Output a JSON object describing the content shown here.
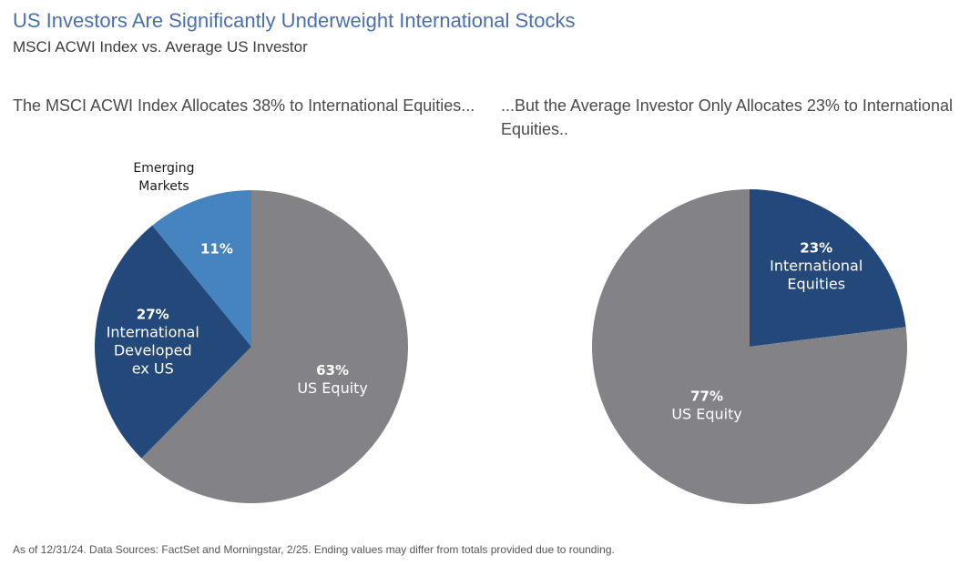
{
  "header": {
    "title": "US Investors Are Significantly Underweight International Stocks",
    "subtitle": "MSCI ACWI Index vs. Average US Investor"
  },
  "panels": {
    "left_title": "The MSCI ACWI Index Allocates 38% to International Equities...",
    "right_title": "...But the Average Investor Only Allocates 23% to International Equities.."
  },
  "colors": {
    "us_equity": "#838387",
    "intl": "#23497a",
    "emerging": "#4584bf"
  },
  "chart_data": [
    {
      "type": "pie",
      "title": "The MSCI ACWI Index Allocates 38% to International Equities...",
      "slices": [
        {
          "name": "US Equity",
          "value": 63,
          "label_pct": "63%",
          "label_lines": [
            "US Equity"
          ],
          "color": "#838387"
        },
        {
          "name": "International Developed ex US",
          "value": 27,
          "label_pct": "27%",
          "label_lines": [
            "International",
            "Developed",
            "ex US"
          ],
          "color": "#23497a"
        },
        {
          "name": "Emerging Markets",
          "value": 11,
          "label_pct": "11%",
          "label_lines": [],
          "external_label_lines": [
            "Emerging",
            "Markets"
          ],
          "color": "#4584bf"
        }
      ]
    },
    {
      "type": "pie",
      "title": "...But the Average Investor Only Allocates 23% to International Equities..",
      "slices": [
        {
          "name": "International Equities",
          "value": 23,
          "label_pct": "23%",
          "label_lines": [
            "International",
            "Equities"
          ],
          "color": "#23497a"
        },
        {
          "name": "US Equity",
          "value": 77,
          "label_pct": "77%",
          "label_lines": [
            "US Equity"
          ],
          "color": "#838387"
        }
      ]
    }
  ],
  "footnote": "As of 12/31/24. Data Sources: FactSet and Morningstar, 2/25. Ending values may differ from totals provided due to rounding."
}
